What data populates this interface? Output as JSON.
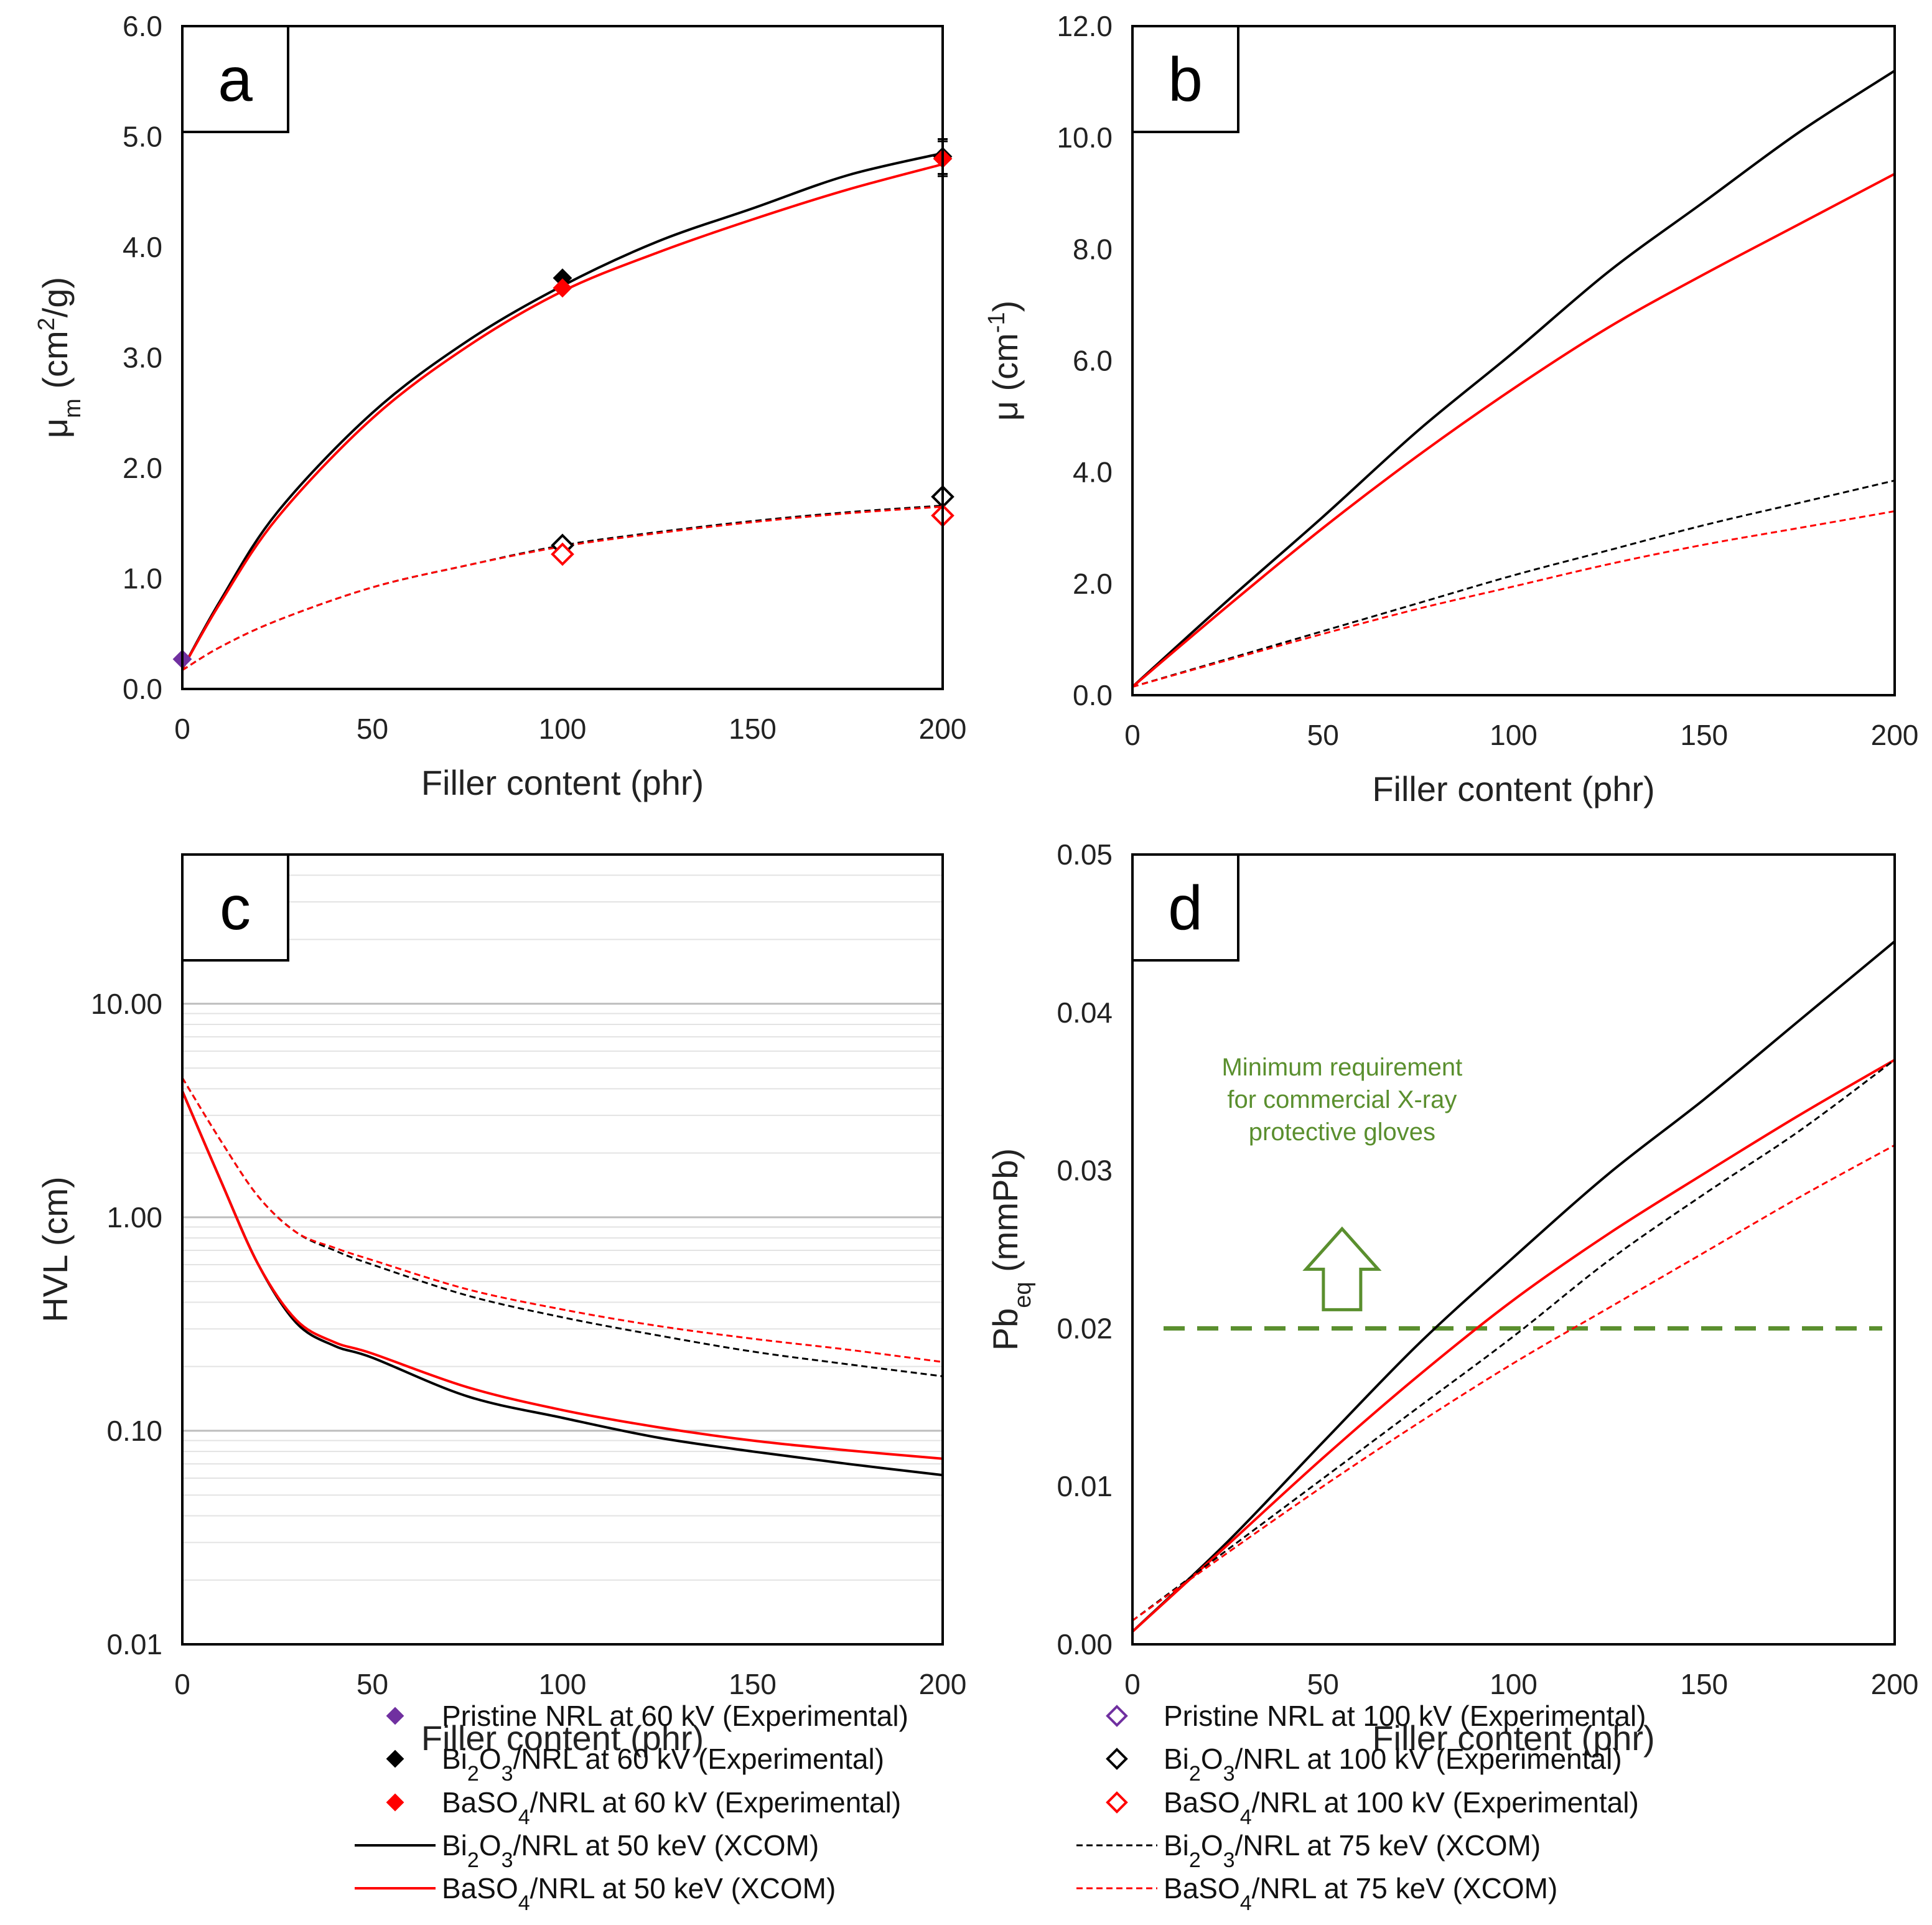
{
  "chart_data": [
    {
      "panel": "a",
      "type": "scatter+line",
      "xlabel": "Filler content (phr)",
      "ylabel": "μm (cm²/g)",
      "ylabel_main": "μ",
      "ylabel_sub": "m",
      "ylabel_rest": " (cm",
      "ylabel_sup": "2",
      "ylabel_end": "/g)",
      "xlim": [
        0,
        200
      ],
      "ylim": [
        0,
        6
      ],
      "xticks": [
        0,
        50,
        100,
        150,
        200
      ],
      "xtick_labels": [
        "0",
        "50",
        "100",
        "150",
        "200"
      ],
      "yticks": [
        0,
        1,
        2,
        3,
        4,
        5,
        6
      ],
      "ytick_labels": [
        "0.0",
        "1.0",
        "2.0",
        "3.0",
        "4.0",
        "5.0",
        "6.0"
      ],
      "scale": "linear",
      "series": [
        {
          "key": "bi_xcom50",
          "x": [
            0,
            10,
            25,
            50,
            75,
            100,
            125,
            150,
            175,
            200
          ],
          "y": [
            0.18,
            0.8,
            1.6,
            2.5,
            3.15,
            3.65,
            4.05,
            4.35,
            4.65,
            4.85
          ]
        },
        {
          "key": "ba_xcom50",
          "x": [
            0,
            10,
            25,
            50,
            75,
            100,
            125,
            150,
            175,
            200
          ],
          "y": [
            0.18,
            0.78,
            1.55,
            2.45,
            3.1,
            3.6,
            3.95,
            4.25,
            4.52,
            4.75
          ]
        },
        {
          "key": "bi_xcom75",
          "x": [
            0,
            10,
            25,
            50,
            75,
            100,
            125,
            150,
            175,
            200
          ],
          "y": [
            0.17,
            0.38,
            0.62,
            0.92,
            1.12,
            1.3,
            1.42,
            1.52,
            1.6,
            1.66
          ]
        },
        {
          "key": "ba_xcom75",
          "x": [
            0,
            10,
            25,
            50,
            75,
            100,
            125,
            150,
            175,
            200
          ],
          "y": [
            0.17,
            0.38,
            0.62,
            0.92,
            1.12,
            1.29,
            1.41,
            1.51,
            1.59,
            1.65
          ]
        },
        {
          "key": "pristine_60",
          "points": [
            [
              0,
              0.27
            ]
          ]
        },
        {
          "key": "bi_60",
          "points": [
            [
              100,
              3.72
            ],
            [
              200,
              4.82
            ]
          ]
        },
        {
          "key": "ba_60",
          "points": [
            [
              100,
              3.63
            ],
            [
              200,
              4.8
            ]
          ]
        },
        {
          "key": "bi_100",
          "points": [
            [
              100,
              1.3
            ],
            [
              200,
              1.74
            ]
          ]
        },
        {
          "key": "ba_100",
          "points": [
            [
              100,
              1.22
            ],
            [
              200,
              1.57
            ]
          ]
        }
      ]
    },
    {
      "panel": "b",
      "type": "line",
      "xlabel": "Filler content (phr)",
      "ylabel": "μ (cm-1)",
      "ylabel_main": "μ (cm",
      "ylabel_sup": "-1",
      "ylabel_end": ")",
      "xlim": [
        0,
        200
      ],
      "ylim": [
        0,
        12
      ],
      "xticks": [
        0,
        50,
        100,
        150,
        200
      ],
      "xtick_labels": [
        "0",
        "50",
        "100",
        "150",
        "200"
      ],
      "yticks": [
        0,
        2,
        4,
        6,
        8,
        10,
        12
      ],
      "ytick_labels": [
        "0.0",
        "2.0",
        "4.0",
        "6.0",
        "8.0",
        "10.0",
        "12.0"
      ],
      "scale": "linear",
      "series": [
        {
          "key": "bi_xcom50",
          "x": [
            0,
            25,
            50,
            75,
            100,
            125,
            150,
            175,
            200
          ],
          "y": [
            0.15,
            1.7,
            3.2,
            4.75,
            6.15,
            7.6,
            8.85,
            10.1,
            11.2
          ]
        },
        {
          "key": "ba_xcom50",
          "x": [
            0,
            25,
            50,
            75,
            100,
            125,
            150,
            175,
            200
          ],
          "y": [
            0.15,
            1.6,
            3.0,
            4.3,
            5.5,
            6.6,
            7.55,
            8.45,
            9.35
          ]
        },
        {
          "key": "bi_xcom75",
          "x": [
            0,
            25,
            50,
            75,
            100,
            125,
            150,
            175,
            200
          ],
          "y": [
            0.15,
            0.65,
            1.15,
            1.65,
            2.15,
            2.6,
            3.05,
            3.45,
            3.85
          ]
        },
        {
          "key": "ba_xcom75",
          "x": [
            0,
            25,
            50,
            75,
            100,
            125,
            150,
            175,
            200
          ],
          "y": [
            0.15,
            0.63,
            1.1,
            1.55,
            1.95,
            2.35,
            2.7,
            3.0,
            3.3
          ]
        }
      ]
    },
    {
      "panel": "c",
      "type": "line",
      "xlabel": "Filler content (phr)",
      "ylabel": "HVL (cm)",
      "xlim": [
        0,
        200
      ],
      "ylim": [
        0.01,
        50
      ],
      "scale": "log",
      "xticks": [
        0,
        50,
        100,
        150,
        200
      ],
      "xtick_labels": [
        "0",
        "50",
        "100",
        "150",
        "200"
      ],
      "yticks": [
        0.01,
        0.1,
        1,
        10
      ],
      "ytick_labels": [
        "0.01",
        "0.10",
        "1.00",
        "10.00"
      ],
      "grid": true,
      "series": [
        {
          "key": "bi_xcom50",
          "x": [
            0,
            10,
            20,
            30,
            40,
            50,
            75,
            100,
            125,
            150,
            175,
            200
          ],
          "y": [
            3.9,
            1.5,
            0.6,
            0.32,
            0.25,
            0.22,
            0.145,
            0.115,
            0.093,
            0.08,
            0.07,
            0.062
          ]
        },
        {
          "key": "ba_xcom50",
          "x": [
            0,
            10,
            20,
            30,
            40,
            50,
            75,
            100,
            125,
            150,
            175,
            200
          ],
          "y": [
            3.9,
            1.5,
            0.6,
            0.33,
            0.26,
            0.23,
            0.16,
            0.125,
            0.104,
            0.09,
            0.081,
            0.074
          ]
        },
        {
          "key": "bi_xcom75",
          "x": [
            0,
            10,
            20,
            30,
            40,
            50,
            75,
            100,
            125,
            150,
            175,
            200
          ],
          "y": [
            4.5,
            2.3,
            1.25,
            0.85,
            0.7,
            0.6,
            0.43,
            0.34,
            0.28,
            0.235,
            0.205,
            0.18
          ]
        },
        {
          "key": "ba_xcom75",
          "x": [
            0,
            10,
            20,
            30,
            40,
            50,
            75,
            100,
            125,
            150,
            175,
            200
          ],
          "y": [
            4.5,
            2.3,
            1.25,
            0.85,
            0.72,
            0.63,
            0.46,
            0.37,
            0.31,
            0.27,
            0.24,
            0.21
          ]
        }
      ]
    },
    {
      "panel": "d",
      "type": "line",
      "xlabel": "Filler content (phr)",
      "ylabel": "Pbeq (mmPb)",
      "ylabel_main": "Pb",
      "ylabel_sub": "eq",
      "ylabel_rest": " (mmPb)",
      "xlim": [
        0,
        200
      ],
      "ylim": [
        0,
        0.05
      ],
      "xticks": [
        0,
        50,
        100,
        150,
        200
      ],
      "xtick_labels": [
        "0",
        "50",
        "100",
        "150",
        "200"
      ],
      "yticks": [
        0,
        0.01,
        0.02,
        0.03,
        0.04,
        0.05
      ],
      "ytick_labels": [
        "0.00",
        "0.01",
        "0.02",
        "0.03",
        "0.04",
        "0.05"
      ],
      "scale": "linear",
      "threshold": 0.02,
      "annotation": [
        "Minimum requirement",
        "for commercial X-ray",
        "protective gloves"
      ],
      "series": [
        {
          "key": "bi_xcom50",
          "x": [
            0,
            25,
            50,
            75,
            100,
            125,
            150,
            175,
            200
          ],
          "y": [
            0.0008,
            0.0065,
            0.0128,
            0.019,
            0.0245,
            0.0298,
            0.0345,
            0.0395,
            0.0445
          ]
        },
        {
          "key": "ba_xcom50",
          "x": [
            0,
            25,
            50,
            75,
            100,
            125,
            150,
            175,
            200
          ],
          "y": [
            0.0008,
            0.0063,
            0.0118,
            0.017,
            0.0218,
            0.026,
            0.0298,
            0.0335,
            0.037
          ]
        },
        {
          "key": "bi_xcom75",
          "x": [
            0,
            25,
            50,
            75,
            100,
            125,
            150,
            175,
            200
          ],
          "y": [
            0.0015,
            0.006,
            0.0105,
            0.015,
            0.0195,
            0.0243,
            0.0285,
            0.0325,
            0.037
          ]
        },
        {
          "key": "ba_xcom75",
          "x": [
            0,
            25,
            50,
            75,
            100,
            125,
            150,
            175,
            200
          ],
          "y": [
            0.0015,
            0.0058,
            0.01,
            0.014,
            0.0178,
            0.0213,
            0.0248,
            0.0283,
            0.0316
          ]
        }
      ]
    }
  ],
  "styles": {
    "bi_xcom50": {
      "color": "#000000",
      "dash": false
    },
    "ba_xcom50": {
      "color": "#ff0000",
      "dash": false
    },
    "bi_xcom75": {
      "color": "#000000",
      "dash": true
    },
    "ba_xcom75": {
      "color": "#ff0000",
      "dash": true
    },
    "pristine_60": {
      "color": "#7030a0",
      "filled": true
    },
    "bi_60": {
      "color": "#000000",
      "filled": true
    },
    "ba_60": {
      "color": "#ff0000",
      "filled": true
    },
    "pristine_100": {
      "color": "#7030a0",
      "filled": false
    },
    "bi_100": {
      "color": "#000000",
      "filled": false
    },
    "ba_100": {
      "color": "#ff0000",
      "filled": false
    },
    "threshold_color": "#5a8f2e"
  },
  "legend": [
    {
      "key": "pristine_60",
      "kind": "marker",
      "parts": [
        [
          "Pristine NRL at 60 kV (Experimental)",
          ""
        ]
      ]
    },
    {
      "key": "pristine_100",
      "kind": "marker",
      "parts": [
        [
          "Pristine NRL at 100 kV (Experimental)",
          ""
        ]
      ]
    },
    {
      "key": "bi_60",
      "kind": "marker",
      "parts": [
        [
          "Bi",
          ""
        ],
        [
          "2",
          "sub"
        ],
        [
          "O",
          ""
        ],
        [
          "3",
          "sub"
        ],
        [
          "/NRL at 60 kV (Experimental)",
          ""
        ]
      ]
    },
    {
      "key": "bi_100",
      "kind": "marker",
      "parts": [
        [
          "Bi",
          ""
        ],
        [
          "2",
          "sub"
        ],
        [
          "O",
          ""
        ],
        [
          "3",
          "sub"
        ],
        [
          "/NRL at 100 kV (Experimental)",
          ""
        ]
      ]
    },
    {
      "key": "ba_60",
      "kind": "marker",
      "parts": [
        [
          "BaSO",
          ""
        ],
        [
          "4",
          "sub"
        ],
        [
          "/NRL at 60 kV (Experimental)",
          ""
        ]
      ]
    },
    {
      "key": "ba_100",
      "kind": "marker",
      "parts": [
        [
          "BaSO",
          ""
        ],
        [
          "4",
          "sub"
        ],
        [
          "/NRL at 100 kV (Experimental)",
          ""
        ]
      ]
    },
    {
      "key": "bi_xcom50",
      "kind": "line",
      "parts": [
        [
          "Bi",
          ""
        ],
        [
          "2",
          "sub"
        ],
        [
          "O",
          ""
        ],
        [
          "3",
          "sub"
        ],
        [
          "/NRL at 50 keV (XCOM)",
          ""
        ]
      ]
    },
    {
      "key": "bi_xcom75",
      "kind": "line",
      "parts": [
        [
          "Bi",
          ""
        ],
        [
          "2",
          "sub"
        ],
        [
          "O",
          ""
        ],
        [
          "3",
          "sub"
        ],
        [
          "/NRL at 75 keV (XCOM)",
          ""
        ]
      ]
    },
    {
      "key": "ba_xcom50",
      "kind": "line",
      "parts": [
        [
          "BaSO",
          ""
        ],
        [
          "4",
          "sub"
        ],
        [
          "/NRL at 50 keV (XCOM)",
          ""
        ]
      ]
    },
    {
      "key": "ba_xcom75",
      "kind": "line",
      "parts": [
        [
          "BaSO",
          ""
        ],
        [
          "4",
          "sub"
        ],
        [
          "/NRL at 75 keV (XCOM)",
          ""
        ]
      ]
    }
  ]
}
